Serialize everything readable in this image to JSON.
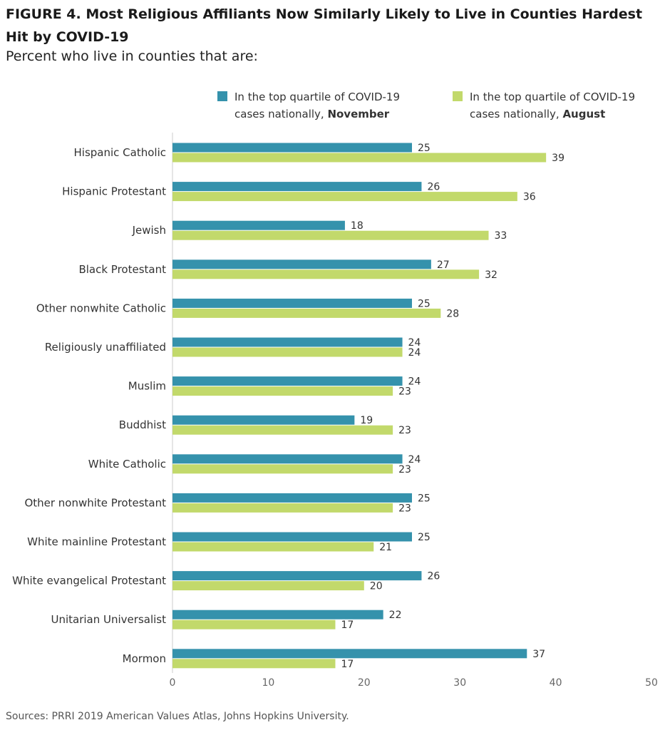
{
  "title": "FIGURE 4. Most Religious Affiliants Now Similarly Likely to Live in Counties Hardest Hit by COVID-19",
  "subtitle": "Percent who live in counties that are:",
  "source": "Sources: PRRI 2019 American Values Atlas, Johns Hopkins University.",
  "legend": [
    {
      "line1": "In the top quartile of COVID-19",
      "line2_prefix": "cases nationally, ",
      "line2_bold": "November"
    },
    {
      "line1": "In the top quartile of COVID-19",
      "line2_prefix": "cases nationally, ",
      "line2_bold": "August"
    }
  ],
  "colors": {
    "november": "#3592ac",
    "august": "#c2d96b",
    "axis": "#cccccc"
  },
  "chart_data": {
    "type": "bar",
    "orientation": "horizontal",
    "categories": [
      "Hispanic Catholic",
      "Hispanic Protestant",
      "Jewish",
      "Black Protestant",
      "Other nonwhite Catholic",
      "Religiously unaffiliated",
      "Muslim",
      "Buddhist",
      "White Catholic",
      "Other nonwhite Protestant",
      "White mainline Protestant",
      "White evangelical Protestant",
      "Unitarian Universalist",
      "Mormon"
    ],
    "series": [
      {
        "name": "In the top quartile of COVID-19 cases nationally, November",
        "values": [
          25,
          26,
          18,
          27,
          25,
          24,
          24,
          19,
          24,
          25,
          25,
          26,
          22,
          37
        ]
      },
      {
        "name": "In the top quartile of COVID-19 cases nationally, August",
        "values": [
          39,
          36,
          33,
          32,
          28,
          24,
          23,
          23,
          23,
          23,
          21,
          20,
          17,
          17
        ]
      }
    ],
    "xlim": [
      0,
      50
    ],
    "xticks": [
      "0",
      "10",
      "20",
      "30",
      "40",
      "50"
    ],
    "grid": false
  }
}
